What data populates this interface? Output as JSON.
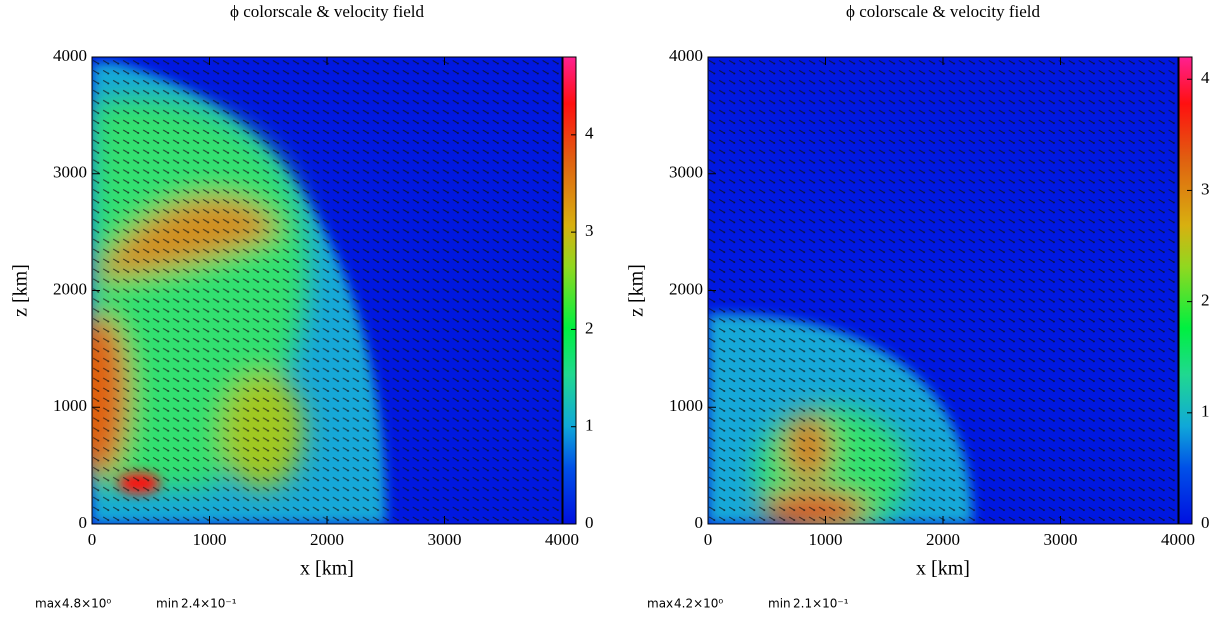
{
  "chart_data": [
    {
      "type": "heatmap",
      "title": "ϕ colorscale & velocity field",
      "xlabel": "x [km]",
      "ylabel": "z [km]",
      "xlim": [
        0,
        4000
      ],
      "ylim": [
        0,
        4000
      ],
      "xticks": [
        0,
        1000,
        2000,
        3000,
        4000
      ],
      "yticks": [
        0,
        1000,
        2000,
        3000,
        4000
      ],
      "colorbar_lim": [
        0,
        4.8
      ],
      "colorbar_ticks": [
        0,
        1,
        2,
        3,
        4
      ],
      "max_label": "max",
      "max": "4.8×10⁰",
      "min_label": "min",
      "min": "2.4×10⁻¹"
    },
    {
      "type": "heatmap",
      "title": "ϕ colorscale & velocity field",
      "xlabel": "x [km]",
      "ylabel": "z [km]",
      "xlim": [
        0,
        4000
      ],
      "ylim": [
        0,
        4000
      ],
      "xticks": [
        0,
        1000,
        2000,
        3000,
        4000
      ],
      "yticks": [
        0,
        1000,
        2000,
        3000,
        4000
      ],
      "colorbar_lim": [
        0,
        4.2
      ],
      "colorbar_ticks": [
        0,
        1,
        2,
        3,
        4
      ],
      "max_label": "max",
      "max": "4.2×10⁰",
      "min_label": "min",
      "min": "2.1×10⁻¹"
    }
  ]
}
